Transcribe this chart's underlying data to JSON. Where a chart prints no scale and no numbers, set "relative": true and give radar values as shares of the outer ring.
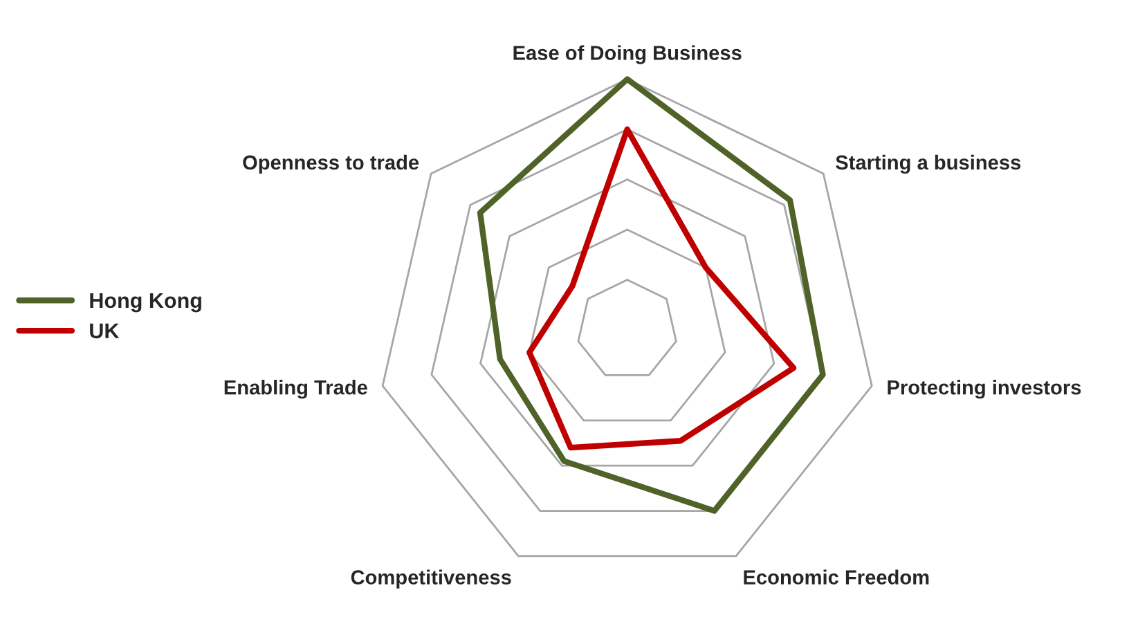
{
  "chart_data": {
    "type": "radar",
    "relative": true,
    "categories": [
      "Ease of Doing Business",
      "Starting a business",
      "Protecting investors",
      "Economic Freedom",
      "Competitiveness",
      "Enabling Trade",
      "Openness to trade"
    ],
    "series": [
      {
        "name": "Hong Kong",
        "color": "#4f6228",
        "values": [
          1.0,
          0.83,
          0.8,
          0.8,
          0.58,
          0.52,
          0.75
        ]
      },
      {
        "name": "UK",
        "color": "#c00000",
        "values": [
          0.8,
          0.4,
          0.68,
          0.49,
          0.52,
          0.4,
          0.28
        ]
      }
    ],
    "grid": true,
    "legend": "left",
    "marker": "none",
    "line_style": "solid"
  }
}
